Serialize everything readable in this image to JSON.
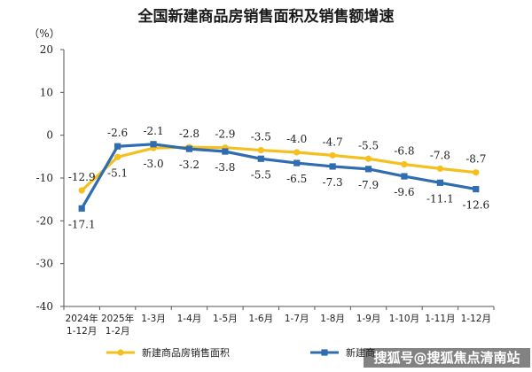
{
  "chart_data": {
    "type": "line",
    "title": "全国新建商品房销售面积及销售额增速",
    "ylabel": "（%）",
    "ylim": [
      -40,
      20
    ],
    "yticks": [
      20,
      10,
      0,
      -10,
      -20,
      -30,
      -40
    ],
    "grid": false,
    "legend_position": "bottom",
    "categories": [
      [
        "2024年",
        "1-12月"
      ],
      [
        "2025年",
        "1-2月"
      ],
      [
        "1-3月"
      ],
      [
        "1-4月"
      ],
      [
        "1-5月"
      ],
      [
        "1-6月"
      ],
      [
        "1-7月"
      ],
      [
        "1-8月"
      ],
      [
        "1-9月"
      ],
      [
        "1-10月"
      ],
      [
        "1-11月"
      ],
      [
        "1-12月"
      ]
    ],
    "series": [
      {
        "name": "新建商品房销售面积",
        "color": "#f5bf1e",
        "values": [
          -12.9,
          -5.1,
          -3.0,
          -2.8,
          -2.9,
          -3.5,
          -4.0,
          -4.7,
          -5.5,
          -6.8,
          -7.8,
          -8.7
        ],
        "labels": [
          "-12.9",
          "-5.1",
          "-3.0",
          "-2.8",
          "-2.9",
          "-3.5",
          "-4.0",
          "-4.7",
          "-5.5",
          "-6.8",
          "-7.8",
          "-8.7"
        ]
      },
      {
        "name": "新建商",
        "color": "#2f6db0",
        "values": [
          -17.1,
          -2.6,
          -2.1,
          -3.2,
          -3.8,
          -5.5,
          -6.5,
          -7.3,
          -7.9,
          -9.6,
          -11.1,
          -12.6
        ],
        "labels": [
          "-17.1",
          "-2.6",
          "-2.1",
          "-3.2",
          "-3.8",
          "-5.5",
          "-6.5",
          "-7.3",
          "-7.9",
          "-9.6",
          "-11.1",
          "-12.6"
        ]
      }
    ]
  },
  "watermark": "搜狐号@搜狐焦点清南站"
}
